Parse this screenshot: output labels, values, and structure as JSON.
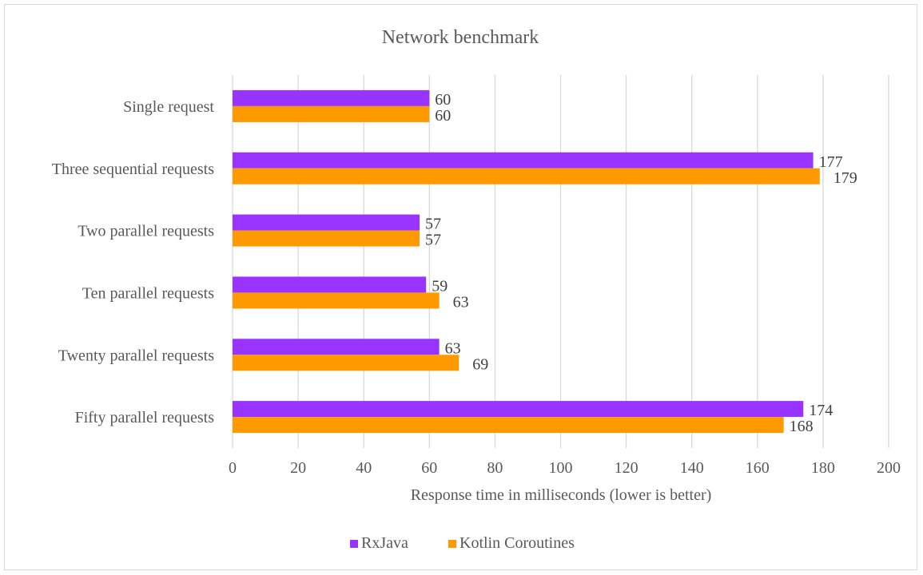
{
  "chart_data": {
    "type": "bar",
    "orientation": "horizontal",
    "title": "Network benchmark",
    "xlabel": "Response time in milliseconds (lower is better)",
    "ylabel": "",
    "xlim": [
      0,
      200
    ],
    "x_ticks": [
      "0",
      "20",
      "40",
      "60",
      "80",
      "100",
      "120",
      "140",
      "160",
      "180",
      "200"
    ],
    "categories": [
      "Single request",
      "Three sequential requests",
      "Two parallel requests",
      "Ten parallel requests",
      "Twenty parallel requests",
      "Fifty parallel requests"
    ],
    "series": [
      {
        "name": "RxJava",
        "color": "#9933ff",
        "values": [
          60,
          177,
          57,
          59,
          63,
          174
        ]
      },
      {
        "name": "Kotlin Coroutines",
        "color": "#ff9900",
        "values": [
          60,
          179,
          57,
          63,
          69,
          168
        ]
      }
    ],
    "grid": true,
    "grid_color": "#d9d9d9",
    "legend_position": "bottom",
    "data_labels": true
  }
}
